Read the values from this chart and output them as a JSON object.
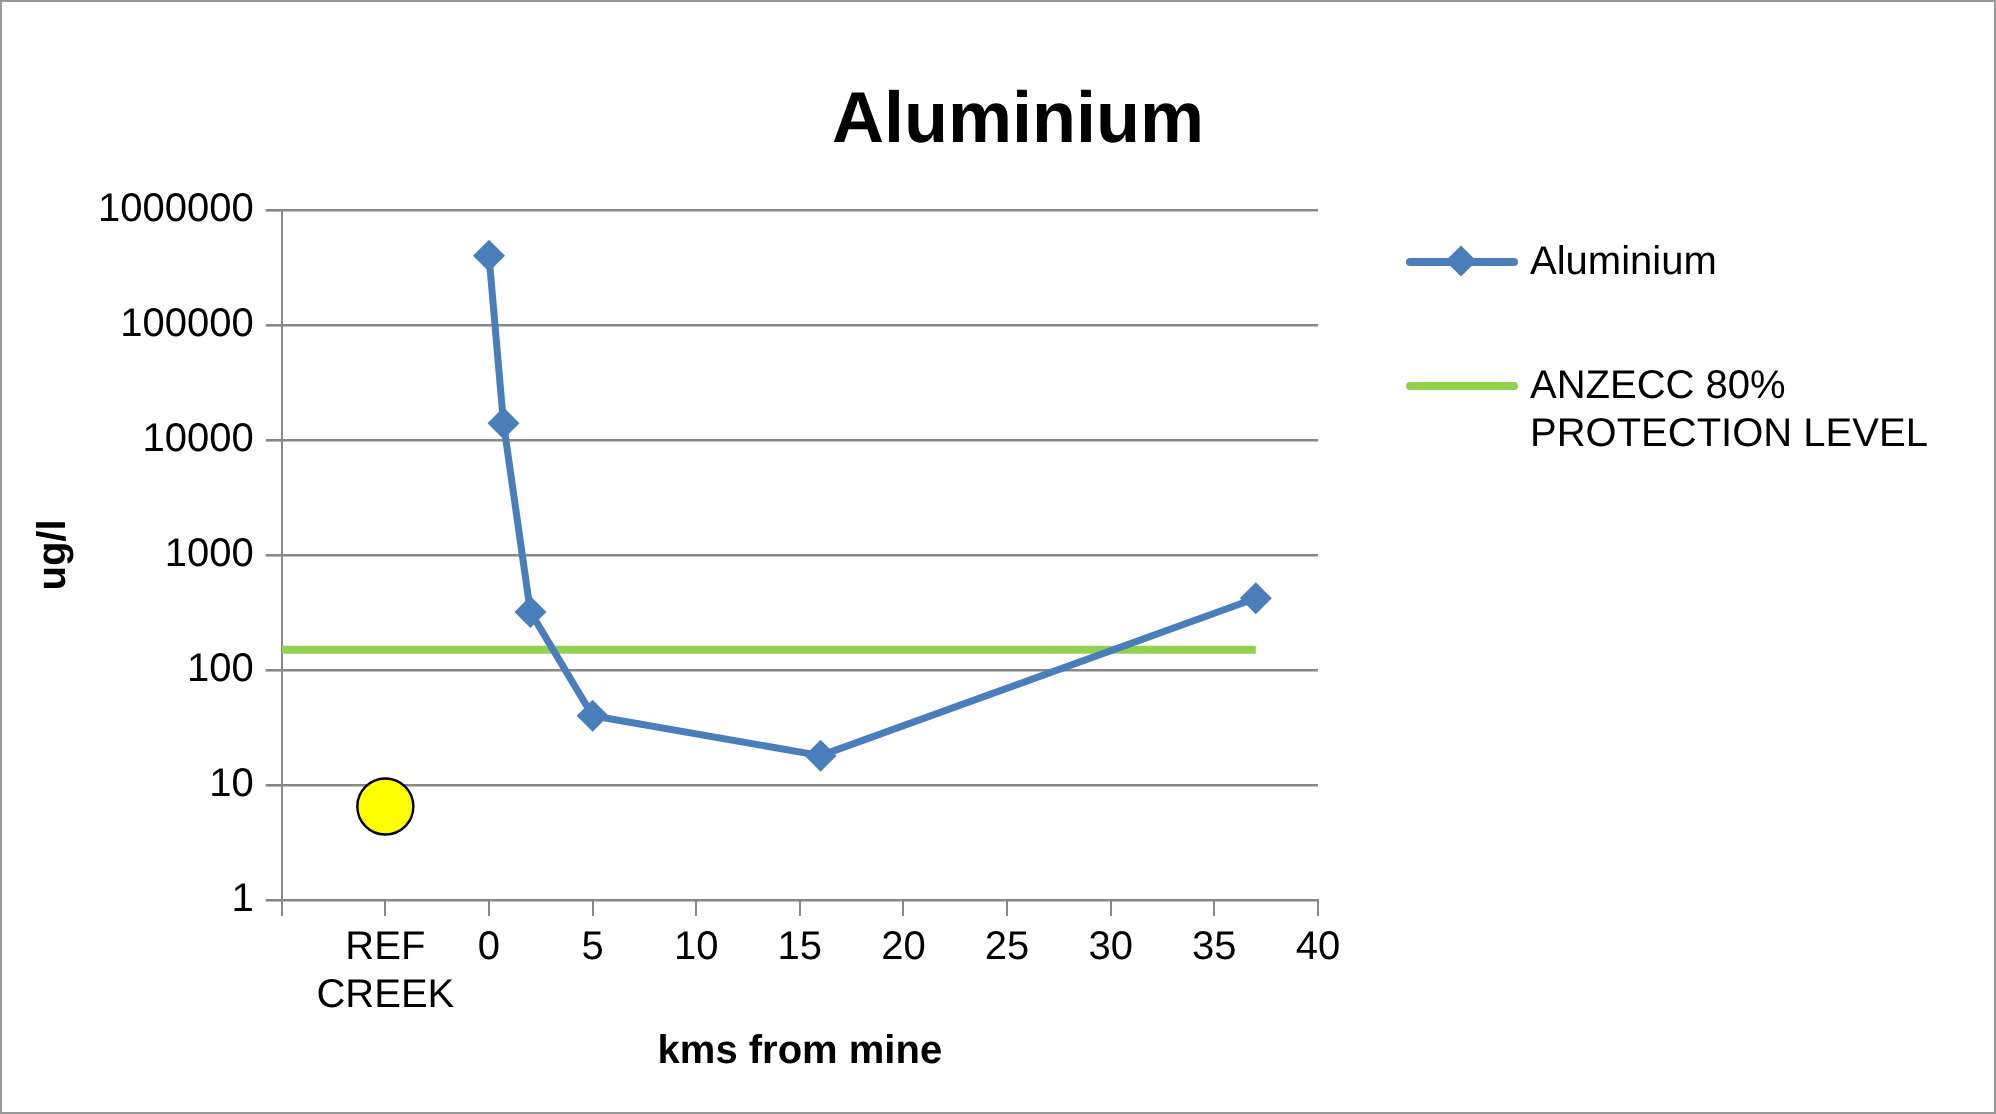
{
  "chart_data": {
    "type": "line",
    "title": "Aluminium",
    "xlabel": "kms from mine",
    "ylabel": "ug/l",
    "xlim": [
      -10,
      40
    ],
    "xticks": [
      {
        "value": -10,
        "label": null
      },
      {
        "value": -5,
        "label": "REF CREEK"
      },
      0,
      5,
      10,
      15,
      20,
      25,
      30,
      35,
      40
    ],
    "ylim": [
      1,
      1000000
    ],
    "yticks": [
      1,
      10,
      100,
      1000,
      10000,
      100000,
      1000000
    ],
    "log": "y",
    "grid": "y",
    "legend": "right",
    "series": [
      {
        "name": "Aluminium",
        "color": "#4a7ebb",
        "x": [
          0,
          0.7,
          2,
          5,
          16,
          37
        ],
        "values": [
          400000,
          14000,
          320,
          40,
          18,
          420
        ],
        "marker": "diamond"
      },
      {
        "name": "ANZECC 80% PROTECTION LEVEL",
        "color": "#92d050",
        "x": [
          -10,
          37
        ],
        "values": [
          150,
          150
        ],
        "marker": "none",
        "line_style": "solid"
      },
      {
        "type": "scatter",
        "color": "#ffff00",
        "x": [
          -5
        ],
        "values": [
          6.5
        ],
        "marker": "circle"
      }
    ]
  }
}
